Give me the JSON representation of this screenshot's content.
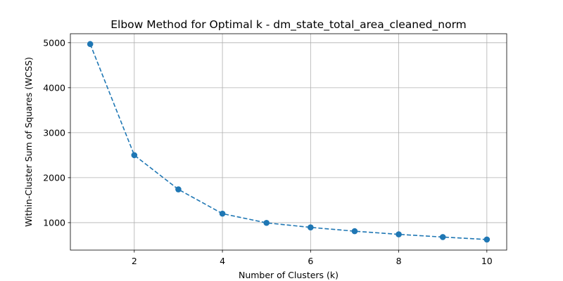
{
  "chart_data": {
    "type": "line",
    "title": "Elbow Method for Optimal k - dm_state_total_area_cleaned_norm",
    "xlabel": "Number of Clusters (k)",
    "ylabel": "Within-Cluster Sum of Squares (WCSS)",
    "x": [
      1,
      2,
      3,
      4,
      5,
      6,
      7,
      8,
      9,
      10
    ],
    "series": [
      {
        "values": [
          4970,
          2500,
          1740,
          1200,
          995,
          895,
          810,
          740,
          680,
          625
        ],
        "color": "#1f77b4",
        "line_style": "dashed",
        "marker": "circle"
      }
    ],
    "xticks": [
      2,
      4,
      6,
      8,
      10
    ],
    "yticks": [
      1000,
      2000,
      3000,
      4000,
      5000
    ],
    "xlim": [
      0.55,
      10.45
    ],
    "ylim": [
      390,
      5200
    ],
    "grid": true,
    "legend": "none"
  }
}
